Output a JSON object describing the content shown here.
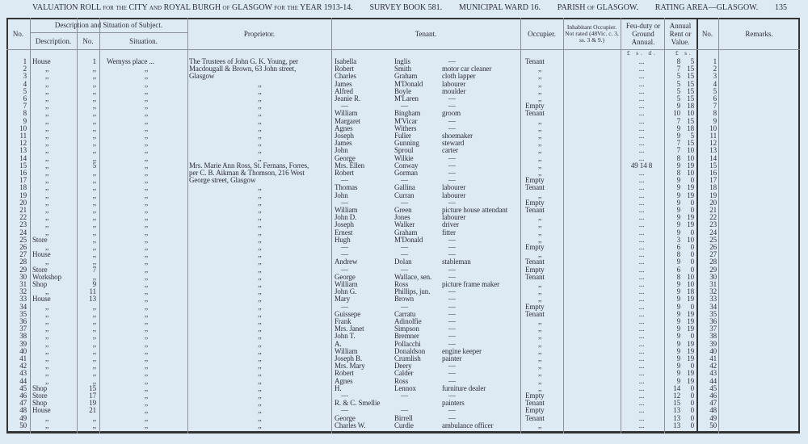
{
  "header": {
    "title": "VALUATION ROLL for the CITY and ROYAL BURGH of GLASGOW for the YEAR 1913-14.",
    "survey_book": "SURVEY BOOK 581.",
    "ward": "MUNICIPAL WARD 16.",
    "parish": "PARISH of GLASGOW.",
    "rating_area": "RATING AREA—GLASGOW.",
    "page_number": "135"
  },
  "columns": {
    "no": "No.",
    "description_group": "Description and Situation of Subject.",
    "description": "Description.",
    "number": "No.",
    "situation": "Situation.",
    "proprietor": "Proprietor.",
    "tenant": "Tenant.",
    "occupier": "Occupier.",
    "inhabitant": "Inhabitant Occupier. Not rated (48Vic. c. 3, ss. 3 & 9.)",
    "feu": "Feu-duty or Ground Annual.",
    "rent": "Annual Rent or Value.",
    "no2": "No.",
    "remarks": "Remarks.",
    "feu_units": "£ s. d.",
    "rent_units": "£ s."
  },
  "rows": [
    [
      "1",
      "House",
      "1",
      "Wemyss place  ...",
      "The Trustees of John G. K. Young, per",
      "Isabella",
      "Inglis",
      "—",
      "Tenant",
      "...",
      "8",
      "5"
    ],
    [
      "2",
      ",,",
      ",,",
      ",,",
      "Macdougall & Brown, 63 John street,",
      "Robert",
      "Smith",
      "motor car cleaner",
      ",,",
      "...",
      "7",
      "15"
    ],
    [
      "3",
      ",,",
      ",,",
      ",,",
      "Glasgow",
      "Charles",
      "Graham",
      "cloth lapper",
      ",,",
      "...",
      "5",
      "15"
    ],
    [
      "4",
      ",,",
      ",,",
      ",,",
      ",,",
      "James",
      "M'Donald",
      "labourer",
      ",,",
      "...",
      "5",
      "15"
    ],
    [
      "5",
      ",,",
      ",,",
      ",,",
      ",,",
      "Alfred",
      "Boyle",
      "moulder",
      ",,",
      "...",
      "5",
      "15"
    ],
    [
      "6",
      ",,",
      ",,",
      ",,",
      ",,",
      "Jeanie R.",
      "M'Laren",
      "—",
      ",,",
      "...",
      "5",
      "15"
    ],
    [
      "7",
      ",,",
      ",,",
      ",,",
      ",,",
      "—",
      "—",
      "—",
      "Empty",
      "...",
      "9",
      "18"
    ],
    [
      "8",
      ",,",
      ",,",
      ",,",
      ",,",
      "William",
      "Bingham",
      "groom",
      "Tenant",
      "...",
      "10",
      "10"
    ],
    [
      "9",
      ",,",
      ",,",
      ",,",
      ",,",
      "Margaret",
      "M'Vicar",
      "—",
      ",,",
      "...",
      "7",
      "15"
    ],
    [
      "10",
      ",,",
      ",,",
      ",,",
      ",,",
      "Agnes",
      "Withers",
      "—",
      ",,",
      "...",
      "9",
      "18"
    ],
    [
      "11",
      ",,",
      ",,",
      ",,",
      ",,",
      "Joseph",
      "Fuller",
      "shoemaker",
      ",,",
      "...",
      "9",
      "5"
    ],
    [
      "12",
      ",,",
      ",,",
      ",,",
      ",,",
      "James",
      "Gunning",
      "steward",
      ",,",
      "...",
      "7",
      "15"
    ],
    [
      "13",
      ",,",
      ",,",
      ",,",
      ",,",
      "John",
      "Sproul",
      "carter",
      ",,",
      "...",
      "7",
      "10"
    ],
    [
      "14",
      ",,",
      ",,",
      ",,",
      ",,",
      "George",
      "Wilkie",
      "—",
      ",,",
      "...",
      "8",
      "10"
    ],
    [
      "15",
      ",,",
      "5",
      ",,",
      "Mrs. Marie Ann Ross, St. Fernans, Forres,",
      "Mrs. Ellen",
      "Conway",
      "—",
      ",,",
      "49  14  8",
      "9",
      "19"
    ],
    [
      "16",
      ",,",
      ",,",
      ",,",
      "per C. B. Aikman & Thomson, 216 West",
      "Robert",
      "Gorman",
      "—",
      ",,",
      "...",
      "8",
      "10"
    ],
    [
      "17",
      ",,",
      ",,",
      ",,",
      "George street, Glasgow",
      "—",
      "—",
      "—",
      "Empty",
      "...",
      "9",
      "0"
    ],
    [
      "18",
      ",,",
      ",,",
      ",,",
      ",,",
      "Thomas",
      "Gallina",
      "labourer",
      "Tenant",
      "...",
      "9",
      "19"
    ],
    [
      "19",
      ",,",
      ",,",
      ",,",
      ",,",
      "John",
      "Curran",
      "labourer",
      ",,",
      "...",
      "9",
      "19"
    ],
    [
      "20",
      ",,",
      ",,",
      ",,",
      ",,",
      "—",
      "—",
      "—",
      "Empty",
      "...",
      "9",
      "0"
    ],
    [
      "21",
      ",,",
      ",,",
      ",,",
      ",,",
      "William",
      "Green",
      "picture house attendant",
      "Tenant",
      "...",
      "9",
      "0"
    ],
    [
      "22",
      ",,",
      ",,",
      ",,",
      ",,",
      "John D.",
      "Jones",
      "labourer",
      ",,",
      "...",
      "9",
      "19"
    ],
    [
      "23",
      ",,",
      ",,",
      ",,",
      ",,",
      "Joseph",
      "Walker",
      "driver",
      ",,",
      "...",
      "9",
      "19"
    ],
    [
      "24",
      ",,",
      ",,",
      ",,",
      ",,",
      "Ernest",
      "Graham",
      "fitter",
      ",,",
      "...",
      "9",
      "0"
    ],
    [
      "25",
      "Store",
      ",,",
      ",,",
      ",,",
      "Hugh",
      "M'Donald",
      "—",
      ",,",
      "...",
      "3",
      "10"
    ],
    [
      "26",
      ",,",
      ",,",
      ",,",
      ",,",
      "—",
      "—",
      "—",
      "Empty",
      "...",
      "6",
      "0"
    ],
    [
      "27",
      "House",
      ",,",
      ",,",
      ",,",
      "—",
      "—",
      "—",
      ",,",
      "...",
      "8",
      "0"
    ],
    [
      "28",
      ",,",
      ",,",
      ",,",
      ",,",
      "Andrew",
      "Dolan",
      "stableman",
      "Tenant",
      "...",
      "9",
      "0"
    ],
    [
      "29",
      "Store",
      "7",
      ",,",
      ",,",
      "—",
      "—",
      "—",
      "Empty",
      "...",
      "6",
      "0"
    ],
    [
      "30",
      "Workshop",
      ",,",
      ",,",
      ",,",
      "George",
      "Wallace, sen.",
      "—",
      "Tenant",
      "...",
      "8",
      "10"
    ],
    [
      "31",
      "Shop",
      "9",
      ",,",
      ",,",
      "William",
      "Ross",
      "picture frame maker",
      ",,",
      "...",
      "9",
      "10"
    ],
    [
      "32",
      ",,",
      "11",
      ",,",
      ",,",
      "John G.",
      "Phillips, jun.",
      "—",
      ",,",
      "...",
      "9",
      "18"
    ],
    [
      "33",
      "House",
      "13",
      ",,",
      ",,",
      "Mary",
      "Brown",
      "—",
      ",,",
      "...",
      "9",
      "19"
    ],
    [
      "34",
      ",,",
      ",,",
      ",,",
      ",,",
      "—",
      "—",
      "—",
      "Empty",
      "...",
      "9",
      "0"
    ],
    [
      "35",
      ",,",
      ",,",
      ",,",
      ",,",
      "Guissepe",
      "Carratu",
      "—",
      "Tenant",
      "...",
      "9",
      "19"
    ],
    [
      "36",
      ",,",
      ",,",
      ",,",
      ",,",
      "Frank",
      "Adinolfie",
      "—",
      ",,",
      "...",
      "9",
      "19"
    ],
    [
      "37",
      ",,",
      ",,",
      ",,",
      ",,",
      "Mrs. Janet",
      "Simpson",
      "—",
      ",,",
      "...",
      "9",
      "19"
    ],
    [
      "38",
      ",,",
      ",,",
      ",,",
      ",,",
      "John T.",
      "Bremner",
      "—",
      ",,",
      "...",
      "9",
      "0"
    ],
    [
      "39",
      ",,",
      ",,",
      ",,",
      ",,",
      "A.",
      "Pollacchi",
      "—",
      ",,",
      "...",
      "9",
      "19"
    ],
    [
      "40",
      ",,",
      ",,",
      ",,",
      ",,",
      "William",
      "Donaldson",
      "engine keeper",
      ",,",
      "...",
      "9",
      "19"
    ],
    [
      "41",
      ",,",
      ",,",
      ",,",
      ",,",
      "Joseph B.",
      "Crumlish",
      "painter",
      ",,",
      "...",
      "9",
      "19"
    ],
    [
      "42",
      ",,",
      ",,",
      ",,",
      ",,",
      "Mrs. Mary",
      "Deery",
      "—",
      ",,",
      "...",
      "9",
      "0"
    ],
    [
      "43",
      ",,",
      ",,",
      ",,",
      ",,",
      "Robert",
      "Calder",
      "—",
      ",,",
      "...",
      "9",
      "19"
    ],
    [
      "44",
      ",,",
      ",,",
      ",,",
      ",,",
      "Agnes",
      "Ross",
      "—",
      ",,",
      "...",
      "9",
      "19"
    ],
    [
      "45",
      "Shop",
      "15",
      ",,",
      ",,",
      "H.",
      "Lennox",
      "furniture dealer",
      ",,",
      "...",
      "14",
      "0"
    ],
    [
      "46",
      "Store",
      "17",
      ",,",
      ",,",
      "—",
      "—",
      "—",
      "Empty",
      "...",
      "12",
      "0"
    ],
    [
      "47",
      "Shop",
      "19",
      ",,",
      ",,",
      "R. & C. Smellie",
      "",
      "painters",
      "Tenant",
      "...",
      "15",
      "0"
    ],
    [
      "48",
      "House",
      "21",
      ",,",
      ",,",
      "—",
      "—",
      "—",
      "Empty",
      "...",
      "13",
      "0"
    ],
    [
      "49",
      ",,",
      ",,",
      ",,",
      ",,",
      "George",
      "Birrell",
      "—",
      "Tenant",
      "...",
      "13",
      "0"
    ],
    [
      "50",
      ",,",
      ",,",
      ",,",
      ",,",
      "Charles W.",
      "Curdie",
      "ambulance officer",
      ",,",
      "...",
      "13",
      "0"
    ]
  ]
}
